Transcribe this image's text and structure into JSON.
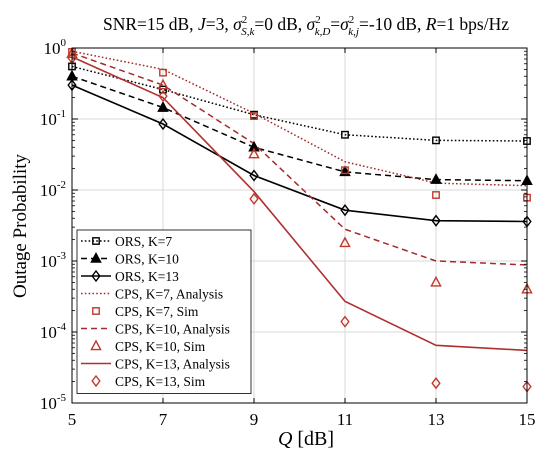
{
  "chart_data": {
    "type": "line",
    "title": {
      "segments": [
        {
          "text": "SNR=15 dB, ",
          "style": "normal"
        },
        {
          "text": "J",
          "style": "italic"
        },
        {
          "text": "=3, ",
          "style": "normal"
        },
        {
          "text": "σ",
          "style": "italic"
        },
        {
          "text": "2",
          "style": "sup"
        },
        {
          "text": "S,k",
          "style": "sub-italic"
        },
        {
          "text": "=0 dB, ",
          "style": "normal"
        },
        {
          "text": "σ",
          "style": "italic"
        },
        {
          "text": "2",
          "style": "sup"
        },
        {
          "text": "k,D",
          "style": "sub-italic"
        },
        {
          "text": "=",
          "style": "normal"
        },
        {
          "text": "σ",
          "style": "italic"
        },
        {
          "text": "2",
          "style": "sup"
        },
        {
          "text": "k,j",
          "style": "sub-italic"
        },
        {
          "text": "=-10 dB, ",
          "style": "normal"
        },
        {
          "text": "R",
          "style": "italic"
        },
        {
          "text": "=1 bps/Hz",
          "style": "normal"
        }
      ]
    },
    "xlabel": {
      "var": "Q",
      "unit": " [dB]"
    },
    "ylabel": "Outage Probability",
    "x": [
      5,
      7,
      9,
      11,
      13,
      15
    ],
    "xlim": [
      5,
      15
    ],
    "ylim": [
      1e-05,
      1
    ],
    "yscale": "log",
    "xticks": [
      "5",
      "7",
      "9",
      "11",
      "13",
      "15"
    ],
    "yticks": [
      {
        "base": "10",
        "exp": "0"
      },
      {
        "base": "10",
        "exp": "-1"
      },
      {
        "base": "10",
        "exp": "-2"
      },
      {
        "base": "10",
        "exp": "-3"
      },
      {
        "base": "10",
        "exp": "-4"
      },
      {
        "base": "10",
        "exp": "-5"
      }
    ],
    "grid": true,
    "legend_position": "bottom-left",
    "series": [
      {
        "name": "ORS, K=7",
        "color": "#000000",
        "dash": "dotted",
        "marker": "square",
        "markerFilled": false,
        "values": [
          0.55,
          0.26,
          0.115,
          0.06,
          0.05,
          0.049
        ]
      },
      {
        "name": "ORS, K=10",
        "color": "#000000",
        "dash": "dashed",
        "marker": "triangle",
        "markerFilled": true,
        "values": [
          0.4,
          0.145,
          0.04,
          0.018,
          0.014,
          0.0135
        ]
      },
      {
        "name": "ORS, K=13",
        "color": "#000000",
        "dash": "solid",
        "marker": "diamond",
        "markerFilled": false,
        "values": [
          0.3,
          0.085,
          0.016,
          0.0052,
          0.0037,
          0.0036
        ]
      },
      {
        "name": "CPS, K=7, Analysis",
        "color": "#a52a2a",
        "dash": "dotted",
        "marker": "none",
        "values": [
          0.9,
          0.5,
          0.12,
          0.025,
          0.0125,
          0.0115
        ]
      },
      {
        "name": "CPS, K=7, Sim",
        "color": "#c0392b",
        "dash": "none",
        "marker": "square",
        "markerFilled": false,
        "values": [
          0.88,
          0.45,
          0.11,
          0.019,
          0.0085,
          0.0078
        ]
      },
      {
        "name": "CPS, K=10, Analysis",
        "color": "#a52a2a",
        "dash": "dashed",
        "marker": "none",
        "values": [
          0.85,
          0.3,
          0.045,
          0.0028,
          0.001,
          0.00088
        ]
      },
      {
        "name": "CPS, K=10, Sim",
        "color": "#c0392b",
        "dash": "none",
        "marker": "triangle",
        "markerFilled": false,
        "values": [
          0.83,
          0.3,
          0.032,
          0.0018,
          0.0005,
          0.0004
        ]
      },
      {
        "name": "CPS, K=13, Analysis",
        "color": "#b03030",
        "dash": "solid",
        "marker": "none",
        "values": [
          0.75,
          0.2,
          0.0095,
          0.00027,
          6.5e-05,
          5.5e-05
        ]
      },
      {
        "name": "CPS, K=13, Sim",
        "color": "#c0392b",
        "dash": "none",
        "marker": "diamond",
        "markerFilled": false,
        "values": [
          0.72,
          0.21,
          0.0075,
          0.00014,
          1.9e-05,
          1.7e-05
        ]
      }
    ]
  }
}
